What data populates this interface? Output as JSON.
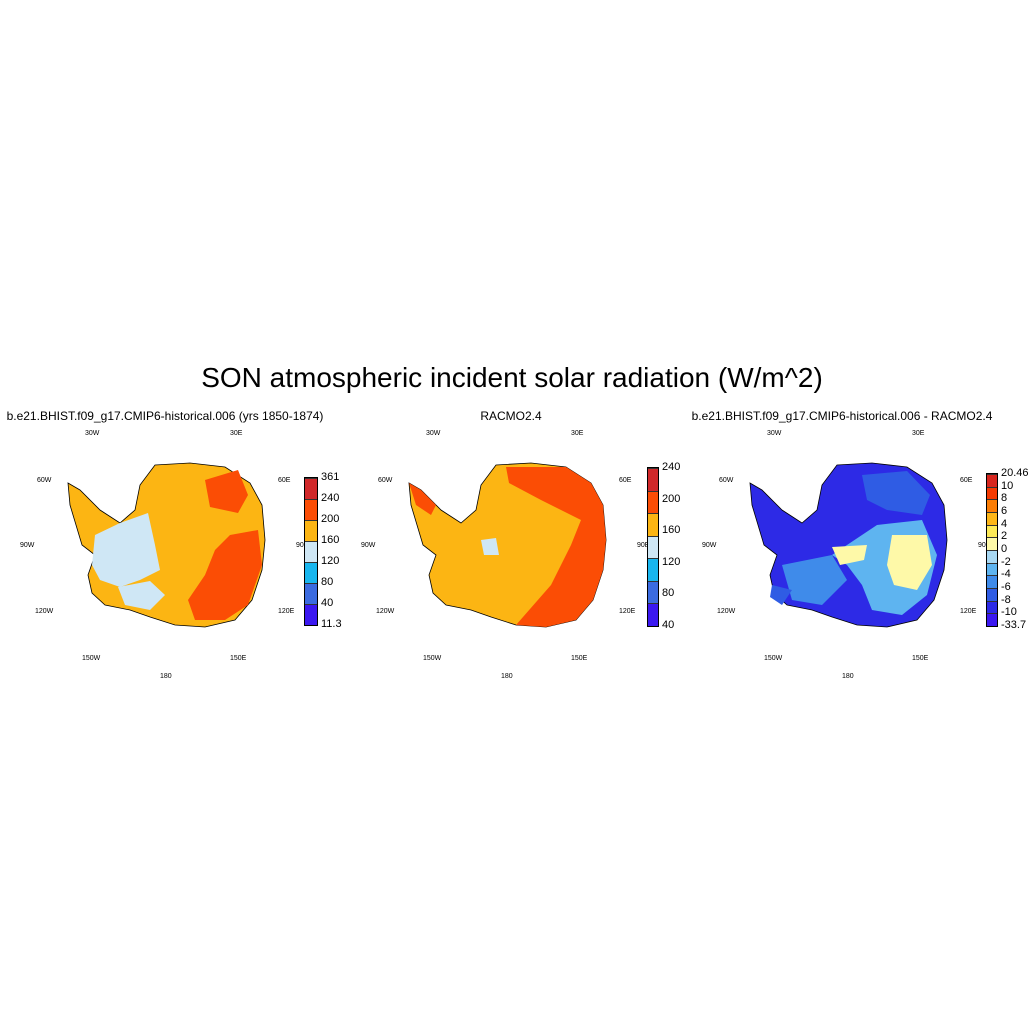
{
  "title": "SON atmospheric incident solar radiation (W/m^2)",
  "lon_labels": [
    "30W",
    "30E",
    "60W",
    "60E",
    "90W",
    "90E",
    "120W",
    "120E",
    "150W",
    "150E",
    "180"
  ],
  "panels": [
    {
      "id": "model",
      "title": "b.e21.BHIST.f09_g17.CMIP6-historical.006 (yrs 1850-1874)",
      "colorbar": {
        "colors": [
          "#3b18f0",
          "#3b6be0",
          "#18b6ef",
          "#cfe7f5",
          "#fcb513",
          "#fb4d05",
          "#d1282a"
        ],
        "labels": [
          "361",
          "240",
          "200",
          "160",
          "120",
          "80",
          "40",
          "11.3"
        ]
      }
    },
    {
      "id": "obs",
      "title": "RACMO2.4",
      "colorbar": {
        "colors": [
          "#3b18f0",
          "#3b6be0",
          "#18b6ef",
          "#cfe7f5",
          "#fcb513",
          "#fb4d05",
          "#d1282a"
        ],
        "labels": [
          "240",
          "200",
          "160",
          "120",
          "80",
          "40"
        ]
      }
    },
    {
      "id": "diff",
      "title": "b.e21.BHIST.f09_g17.CMIP6-historical.006 - RACMO2.4",
      "colorbar": {
        "colors": [
          "#3b18f0",
          "#2d2ae6",
          "#2f5ce4",
          "#3f8bea",
          "#5eb4f0",
          "#a8d8f3",
          "#fef9a8",
          "#fdea57",
          "#fdb618",
          "#fb7d05",
          "#f43a02",
          "#d7261e"
        ],
        "labels": [
          "20.46",
          "10",
          "8",
          "6",
          "4",
          "2",
          "0",
          "-2",
          "-4",
          "-6",
          "-8",
          "-10",
          "-33.7"
        ]
      }
    }
  ]
}
